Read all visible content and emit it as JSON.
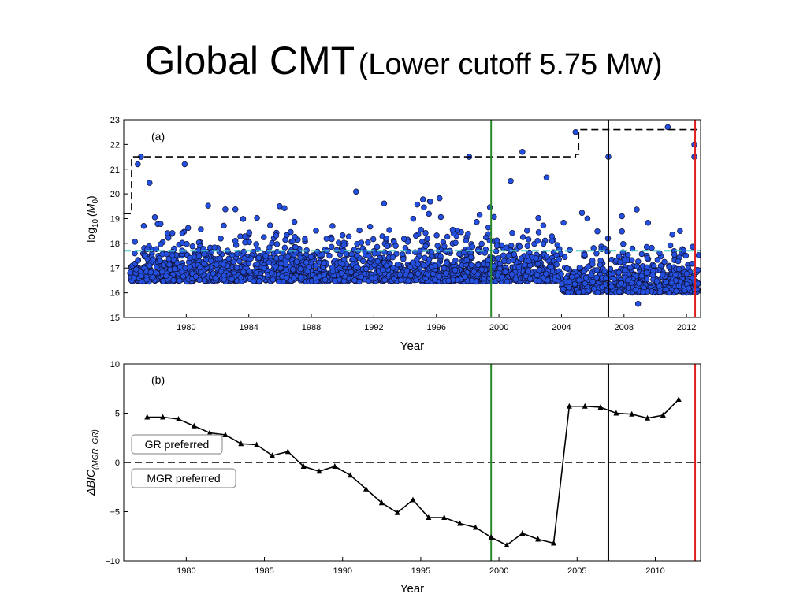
{
  "slide": {
    "title_main": "Global CMT",
    "title_sub": "(Lower cutoff 5.75 Mw)"
  },
  "colors": {
    "points": "#2450e0",
    "threshold": "#40c8c8",
    "green_line": "#2a8a2a",
    "black_line": "#000000",
    "red_line": "#e02020"
  },
  "chart_data": [
    {
      "type": "scatter",
      "panel_label": "(a)",
      "xlabel": "Year",
      "ylabel_base": "log",
      "ylabel_sub": "10",
      "ylabel_arg": "(M",
      "ylabel_arg_sub": "0",
      "ylabel_close": ")",
      "xlim": [
        1976.0,
        2012.9
      ],
      "ylim": [
        15,
        23
      ],
      "x_ticks": [
        1980,
        1984,
        1988,
        1992,
        1996,
        2000,
        2004,
        2008,
        2012
      ],
      "x_tick_labels": [
        "1980",
        "1984",
        "1988",
        "1992",
        "1996",
        "2000",
        "2004",
        "2008",
        "2012"
      ],
      "y_ticks": [
        15,
        16,
        17,
        18,
        19,
        20,
        21,
        22,
        23
      ],
      "y_tick_labels": [
        "15",
        "16",
        "17",
        "18",
        "19",
        "20",
        "21",
        "22",
        "23"
      ],
      "threshold_y": 17.7,
      "max_envelope": [
        [
          1976.0,
          19.2
        ],
        [
          1976.5,
          19.2
        ],
        [
          1976.5,
          21.5
        ],
        [
          2004.9,
          21.5
        ],
        [
          2004.9,
          21.6
        ],
        [
          2005.1,
          21.6
        ],
        [
          2005.1,
          22.6
        ],
        [
          2012.7,
          22.6
        ]
      ],
      "vertical_lines": [
        1999.5,
        2007.0,
        2012.55
      ],
      "notable_points": [
        [
          1977.1,
          21.5
        ],
        [
          1976.9,
          21.2
        ],
        [
          1979.9,
          21.2
        ],
        [
          1998.1,
          21.5
        ],
        [
          2001.5,
          21.7
        ],
        [
          2004.9,
          22.5
        ],
        [
          2007.0,
          21.5
        ],
        [
          2010.8,
          22.7
        ],
        [
          2012.5,
          22.0
        ],
        [
          2012.5,
          21.5
        ],
        [
          2008.9,
          15.55
        ]
      ],
      "series_count_note": ""
    },
    {
      "type": "line",
      "panel_label": "(b)",
      "xlabel": "Year",
      "ylabel_main": "ΔBIC",
      "ylabel_sub": "(MGR−GR)",
      "xlim": [
        1976.0,
        2012.9
      ],
      "ylim": [
        -10,
        10
      ],
      "x_ticks": [
        1980,
        1985,
        1990,
        1995,
        2000,
        2005,
        2010
      ],
      "x_tick_labels": [
        "1980",
        "1985",
        "1990",
        "1995",
        "2000",
        "2005",
        "2010"
      ],
      "y_ticks": [
        -10,
        -5,
        0,
        5,
        10
      ],
      "y_tick_labels": [
        "−10",
        "−5",
        "0",
        "5",
        "10"
      ],
      "zero_line_y": 0,
      "annotations": [
        "GR preferred",
        "MGR preferred"
      ],
      "vertical_lines": [
        1999.5,
        2007.0,
        2012.55
      ],
      "x": [
        1977.5,
        1978.5,
        1979.5,
        1980.5,
        1981.5,
        1982.5,
        1983.5,
        1984.5,
        1985.5,
        1986.5,
        1987.5,
        1988.5,
        1989.5,
        1990.5,
        1991.5,
        1992.5,
        1993.5,
        1994.5,
        1995.5,
        1996.5,
        1997.5,
        1998.5,
        1999.5,
        2000.5,
        2001.5,
        2002.5,
        2003.5,
        2004.5,
        2005.5,
        2006.5,
        2007.5,
        2008.5,
        2009.5,
        2010.5,
        2011.5
      ],
      "y": [
        4.6,
        4.6,
        4.4,
        3.7,
        3.0,
        2.8,
        1.9,
        1.8,
        0.7,
        1.1,
        -0.4,
        -0.9,
        -0.4,
        -1.3,
        -2.7,
        -4.1,
        -5.1,
        -3.8,
        -5.6,
        -5.6,
        -6.2,
        -6.6,
        -7.6,
        -8.4,
        -7.2,
        -7.8,
        -8.2,
        5.7,
        5.7,
        5.6,
        5.0,
        4.9,
        4.5,
        4.8,
        6.4
      ]
    }
  ]
}
